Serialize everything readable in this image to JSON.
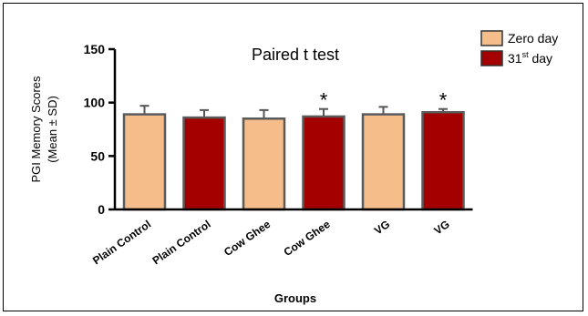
{
  "chart_data": {
    "type": "bar",
    "title": "Paired t test",
    "xlabel": "Groups",
    "ylabel_line1": "PGI Memory Scores",
    "ylabel_line2": "(Mean ± SD)",
    "ylim": [
      0,
      150
    ],
    "yticks": [
      0,
      50,
      100,
      150
    ],
    "categories": [
      "Plain Control",
      "Plain Control",
      "Cow Ghee",
      "Cow Ghee",
      "VG",
      "VG"
    ],
    "series": [
      {
        "name": "Zero day",
        "color": "#F5BD8A"
      },
      {
        "name": "31st day",
        "color": "#A40000"
      }
    ],
    "bars": [
      {
        "category": "Plain Control",
        "series": 0,
        "value": 89,
        "sd": 8,
        "significant": false
      },
      {
        "category": "Plain Control",
        "series": 1,
        "value": 86,
        "sd": 7,
        "significant": false
      },
      {
        "category": "Cow Ghee",
        "series": 0,
        "value": 85,
        "sd": 8,
        "significant": false
      },
      {
        "category": "Cow Ghee",
        "series": 1,
        "value": 87,
        "sd": 7,
        "significant": true
      },
      {
        "category": "VG",
        "series": 0,
        "value": 89,
        "sd": 7,
        "significant": false
      },
      {
        "category": "VG",
        "series": 1,
        "value": 91,
        "sd": 3,
        "significant": true
      }
    ],
    "significance_marker": "*",
    "legend": {
      "position": "top-right",
      "entries": [
        {
          "text": "Zero day",
          "sup": ""
        },
        {
          "text": "31",
          "sup": "st",
          "suffix": " day"
        }
      ]
    }
  }
}
